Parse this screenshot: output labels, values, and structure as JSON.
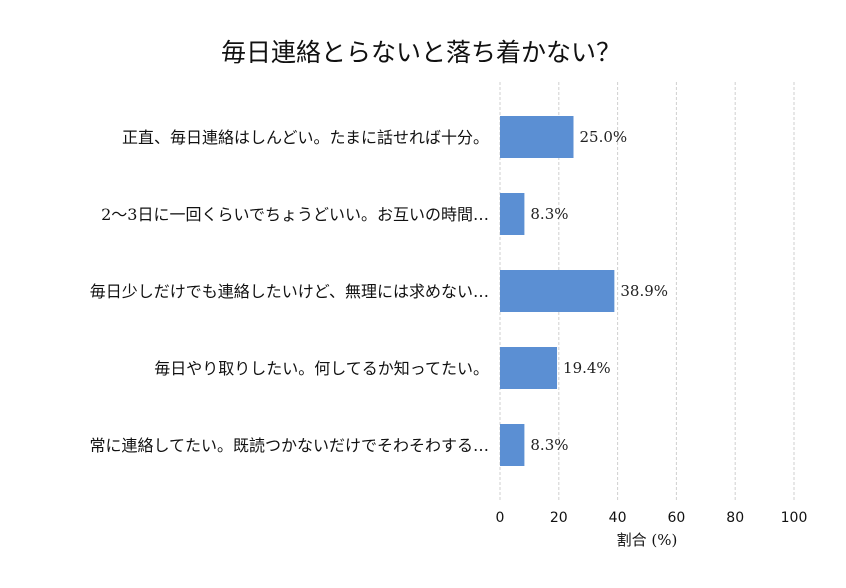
{
  "chart_data": {
    "type": "bar",
    "orientation": "horizontal",
    "title": "毎日連絡とらないと落ち着かない？",
    "xlabel": "割合 (%)",
    "ylabel": "",
    "xlim": [
      0,
      100
    ],
    "xticks": [
      "0",
      "20",
      "40",
      "60",
      "80",
      "100"
    ],
    "grid": true,
    "bar_color": "#5b8fd3",
    "categories": [
      "正直、毎日連絡はしんどい。たまに話せれば十分。",
      "2〜3日に一回くらいでちょうどいい。お互いの時間…",
      "毎日少しだけでも連絡したいけど、無理には求めない…",
      "毎日やり取りしたい。何してるか知ってたい。",
      "常に連絡してたい。既読つかないだけでそわそわする…"
    ],
    "values": [
      25.0,
      8.3,
      38.9,
      19.4,
      8.3
    ],
    "value_labels": [
      "25.0%",
      "8.3%",
      "38.9%",
      "19.4%",
      "8.3%"
    ]
  }
}
